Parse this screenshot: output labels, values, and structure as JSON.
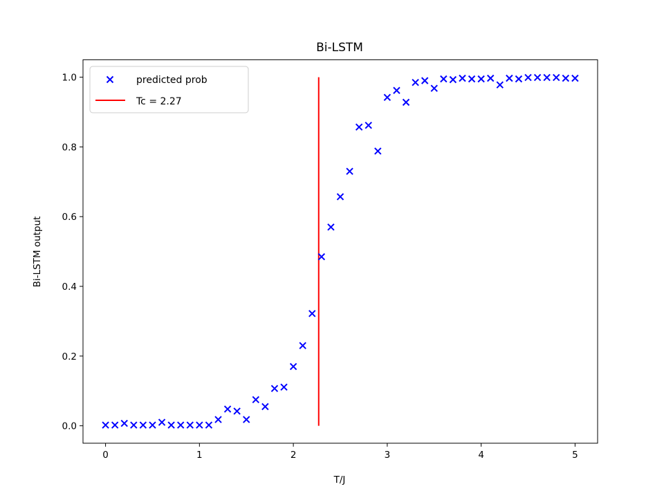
{
  "chart_data": {
    "type": "scatter",
    "title": "Bi-LSTM",
    "xlabel": "T/J",
    "ylabel": "Bi-LSTM output",
    "xlim": [
      -0.24,
      5.24
    ],
    "ylim": [
      -0.05,
      1.05
    ],
    "xticks": [
      "0",
      "1",
      "2",
      "3",
      "4",
      "5"
    ],
    "yticks": [
      "0.0",
      "0.2",
      "0.4",
      "0.6",
      "0.8",
      "1.0"
    ],
    "grid": false,
    "legend_position": "top-left",
    "series": [
      {
        "name": "predicted prob",
        "kind": "scatter",
        "marker": "x",
        "color": "#0000ff",
        "x": [
          0.0,
          0.1,
          0.2,
          0.3,
          0.4,
          0.5,
          0.6,
          0.7,
          0.8,
          0.9,
          1.0,
          1.1,
          1.2,
          1.3,
          1.4,
          1.5,
          1.6,
          1.7,
          1.8,
          1.9,
          2.0,
          2.1,
          2.2,
          2.3,
          2.4,
          2.5,
          2.6,
          2.7,
          2.8,
          2.9,
          3.0,
          3.1,
          3.2,
          3.3,
          3.4,
          3.5,
          3.6,
          3.7,
          3.8,
          3.9,
          4.0,
          4.1,
          4.2,
          4.3,
          4.4,
          4.5,
          4.6,
          4.7,
          4.8,
          4.9,
          5.0
        ],
        "y": [
          0.002,
          0.002,
          0.007,
          0.002,
          0.002,
          0.002,
          0.01,
          0.002,
          0.002,
          0.002,
          0.002,
          0.002,
          0.018,
          0.048,
          0.042,
          0.018,
          0.075,
          0.055,
          0.107,
          0.111,
          0.17,
          0.23,
          0.322,
          0.485,
          0.57,
          0.657,
          0.73,
          0.857,
          0.862,
          0.788,
          0.942,
          0.962,
          0.928,
          0.985,
          0.99,
          0.968,
          0.995,
          0.993,
          0.997,
          0.995,
          0.995,
          0.997,
          0.978,
          0.997,
          0.995,
          0.999,
          0.999,
          0.999,
          0.999,
          0.997,
          0.997
        ]
      },
      {
        "name": "Tc = 2.27",
        "kind": "vline",
        "color": "#ff0000",
        "x": 2.27,
        "y_range": [
          0.0,
          1.0
        ]
      }
    ]
  }
}
